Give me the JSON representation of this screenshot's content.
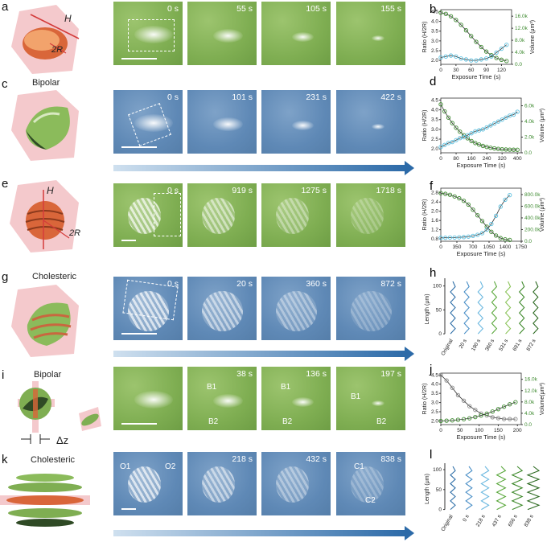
{
  "panels": {
    "a": {
      "label": "a",
      "H": "H",
      "R": "2R",
      "times": [
        "0 s",
        "55 s",
        "105 s",
        "155 s"
      ]
    },
    "c": {
      "label": "c",
      "title": "Bipolar",
      "times": [
        "0 s",
        "101 s",
        "231 s",
        "422 s"
      ]
    },
    "e": {
      "label": "e",
      "H": "H",
      "R": "2R",
      "times": [
        "0 s",
        "919 s",
        "1275 s",
        "1718 s"
      ]
    },
    "g": {
      "label": "g",
      "title": "Cholesteric",
      "times": [
        "0 s",
        "20 s",
        "360 s",
        "872 s"
      ]
    },
    "i": {
      "label": "i",
      "title": "Bipolar",
      "dz": "Δz",
      "times": [
        "",
        "38 s",
        "136 s",
        "197 s"
      ],
      "tags": {
        "b1": "B1",
        "b2": "B2"
      }
    },
    "k": {
      "label": "k",
      "title": "Cholesteric",
      "times": [
        "",
        "218 s",
        "432 s",
        "838 s"
      ],
      "tags": {
        "o1": "O1",
        "o2": "O2",
        "c1": "C1",
        "c2": "C2"
      }
    }
  },
  "chart_data": [
    {
      "id": "b",
      "label": "b",
      "type": "line",
      "xlabel": "Exposure Time (s)",
      "ylabel": "Ratio (H/2R)",
      "y2label": "Volume (μm³)",
      "xlim": [
        0,
        140
      ],
      "xticks": [
        "0",
        "30",
        "60",
        "90",
        "120"
      ],
      "ylim": [
        1.8,
        4.6
      ],
      "yticks": [
        "2.0",
        "2.5",
        "3.0",
        "3.5",
        "4.0",
        "4.5"
      ],
      "y2ticks": [
        "0.0",
        "4.0k",
        "8.0k",
        "12.0k",
        "16.0k"
      ],
      "y2lim": [
        0,
        18000
      ],
      "series": [
        {
          "axis": "y2",
          "color": "#3d8a2f",
          "x": [
            0,
            10,
            20,
            30,
            40,
            50,
            60,
            70,
            80,
            90,
            100,
            110,
            120,
            130
          ],
          "values": [
            17000,
            16600,
            15800,
            14600,
            13000,
            11200,
            9300,
            7400,
            5700,
            4200,
            3000,
            2100,
            1500,
            1100
          ]
        },
        {
          "axis": "y",
          "color": "#5bc0e0",
          "x": [
            0,
            10,
            20,
            30,
            40,
            50,
            60,
            70,
            80,
            90,
            100,
            110,
            120,
            130
          ],
          "values": [
            2.15,
            2.2,
            2.25,
            2.2,
            2.1,
            2.05,
            2.0,
            2.0,
            2.05,
            2.1,
            2.2,
            2.4,
            2.6,
            2.8
          ]
        }
      ]
    },
    {
      "id": "d",
      "label": "d",
      "type": "line",
      "xlabel": "Exposure Time (s)",
      "ylabel": "Ratio (H/2R)",
      "y2label": "Volume (μm³)",
      "xlim": [
        0,
        420
      ],
      "xticks": [
        "0",
        "80",
        "160",
        "240",
        "320",
        "400"
      ],
      "ylim": [
        1.8,
        4.6
      ],
      "yticks": [
        "2.0",
        "2.5",
        "3.0",
        "3.5",
        "4.0",
        "4.5"
      ],
      "y2ticks": [
        "0.0",
        "2.0k",
        "4.0k",
        "6.0k"
      ],
      "y2lim": [
        0,
        7000
      ],
      "series": [
        {
          "axis": "y2",
          "color": "#3d8a2f",
          "x": [
            0,
            20,
            40,
            60,
            80,
            100,
            120,
            140,
            160,
            180,
            200,
            220,
            240,
            260,
            280,
            300,
            320,
            340,
            360,
            380,
            400
          ],
          "values": [
            6200,
            5300,
            4500,
            3800,
            3200,
            2700,
            2250,
            1850,
            1500,
            1250,
            1050,
            880,
            750,
            640,
            560,
            500,
            450,
            420,
            400,
            390,
            380
          ]
        },
        {
          "axis": "y",
          "color": "#5bc0e0",
          "x": [
            0,
            20,
            40,
            60,
            80,
            100,
            120,
            140,
            160,
            180,
            200,
            220,
            240,
            260,
            280,
            300,
            320,
            340,
            360,
            380,
            400
          ],
          "values": [
            2.1,
            2.2,
            2.3,
            2.35,
            2.45,
            2.55,
            2.6,
            2.7,
            2.8,
            2.9,
            2.95,
            3.0,
            3.1,
            3.2,
            3.3,
            3.4,
            3.5,
            3.6,
            3.7,
            3.75,
            3.9
          ]
        }
      ]
    },
    {
      "id": "f",
      "label": "f",
      "type": "line",
      "xlabel": "Exposure Time (s)",
      "ylabel": "Ratio (H/2R)",
      "y2label": "Volume (μm³)",
      "xlim": [
        0,
        1750
      ],
      "xticks": [
        "0",
        "350",
        "700",
        "1050",
        "1400",
        "1750"
      ],
      "ylim": [
        0.7,
        3.0
      ],
      "yticks": [
        "0.8",
        "1.2",
        "1.6",
        "2.0",
        "2.4",
        "2.8"
      ],
      "y2ticks": [
        "0.0",
        "200.0k",
        "400.0k",
        "600.0k",
        "800.0k"
      ],
      "y2lim": [
        0,
        840000
      ],
      "series": [
        {
          "axis": "y2",
          "color": "#3d8a2f",
          "x": [
            0,
            100,
            200,
            300,
            400,
            500,
            600,
            700,
            800,
            900,
            1000,
            1100,
            1200,
            1300,
            1400,
            1500
          ],
          "values": [
            760000,
            750000,
            735000,
            710000,
            680000,
            640000,
            580000,
            500000,
            410000,
            320000,
            230000,
            150000,
            90000,
            50000,
            30000,
            20000
          ]
        },
        {
          "axis": "y",
          "color": "#5bc0e0",
          "x": [
            0,
            100,
            200,
            300,
            400,
            500,
            600,
            700,
            800,
            900,
            1000,
            1100,
            1200,
            1300,
            1400,
            1500
          ],
          "values": [
            0.85,
            0.85,
            0.86,
            0.86,
            0.87,
            0.88,
            0.9,
            0.93,
            0.98,
            1.05,
            1.2,
            1.45,
            1.8,
            2.2,
            2.5,
            2.7
          ]
        }
      ]
    },
    {
      "id": "h",
      "label": "h",
      "type": "line",
      "ylabel": "Length (μm)",
      "ylim": [
        0,
        100
      ],
      "yticks": [
        "0",
        "50",
        "100"
      ],
      "categories": [
        "Original",
        "20 s",
        "190 s",
        "360 s",
        "531 s",
        "691 s",
        "872 s"
      ],
      "colors": [
        "#2f6fa8",
        "#4a8fc7",
        "#6bb8e0",
        "#5aa83c",
        "#8cc45a",
        "#3f8a2c",
        "#2d6a22"
      ]
    },
    {
      "id": "j",
      "label": "j",
      "type": "line",
      "xlabel": "Exposure Time (s)",
      "ylabel": "Ratio (H/2R)",
      "y2label": "Volume(μm³)",
      "xlim": [
        0,
        210
      ],
      "xticks": [
        "0",
        "50",
        "100",
        "150",
        "200"
      ],
      "ylim": [
        1.8,
        4.6
      ],
      "yticks": [
        "2.0",
        "2.5",
        "3.0",
        "3.5",
        "4.0",
        "4.5"
      ],
      "y2ticks": [
        "0.0",
        "4.0k",
        "8.0k",
        "12.0k",
        "16.0k"
      ],
      "y2lim": [
        0,
        17000
      ],
      "series": [
        {
          "axis": "y",
          "color": "#888888",
          "x": [
            0,
            15,
            30,
            45,
            60,
            75,
            90,
            105,
            120,
            135,
            150,
            165,
            180,
            195
          ],
          "values": [
            4.5,
            4.2,
            3.8,
            3.4,
            3.1,
            2.8,
            2.6,
            2.4,
            2.3,
            2.2,
            2.15,
            2.1,
            2.1,
            2.1
          ]
        },
        {
          "axis": "y2",
          "color": "#3d8a2f",
          "x": [
            0,
            15,
            30,
            45,
            60,
            75,
            90,
            105,
            120,
            135,
            150,
            165,
            180,
            195
          ],
          "values": [
            1200,
            1300,
            1400,
            1600,
            1800,
            2100,
            2500,
            3000,
            3600,
            4300,
            5100,
            5900,
            6700,
            7400
          ]
        }
      ]
    },
    {
      "id": "l",
      "label": "l",
      "type": "line",
      "ylabel": "Length (μm)",
      "ylim": [
        0,
        100
      ],
      "yticks": [
        "0",
        "50",
        "100"
      ],
      "categories": [
        "Original",
        "0 s",
        "218 s",
        "437 s",
        "656 s",
        "838 s"
      ],
      "colors": [
        "#2f6fa8",
        "#4a8fc7",
        "#6bb8e0",
        "#5aa83c",
        "#3f8a2c",
        "#2d6a22"
      ]
    }
  ]
}
